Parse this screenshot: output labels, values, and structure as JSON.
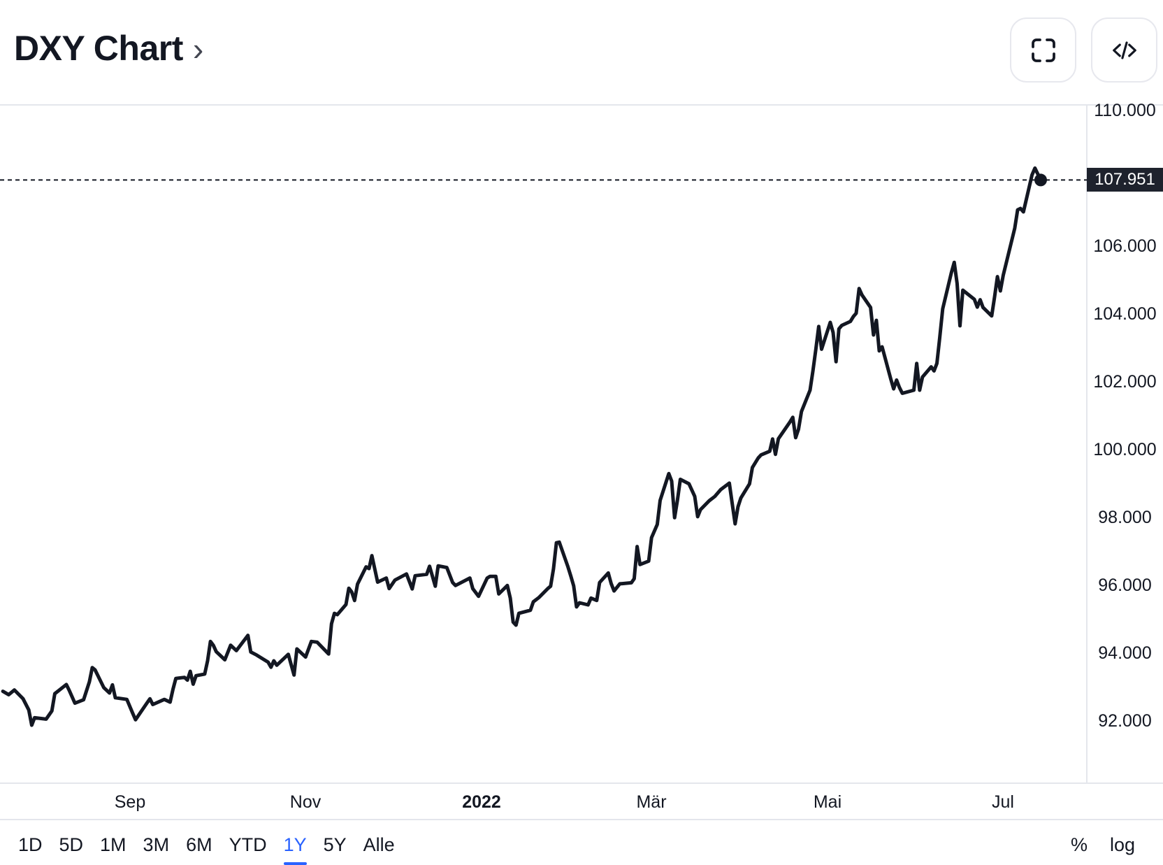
{
  "header": {
    "title": "DXY Chart",
    "chevron": "›"
  },
  "colors": {
    "line": "#131722",
    "accent_blue": "#2962ff",
    "badge_bg": "#1e222d",
    "border_gray": "#e4e6ec",
    "text_dark": "#131722"
  },
  "chart_data": {
    "type": "line",
    "title": "DXY Chart",
    "symbol": "DXY",
    "grid": "off",
    "legend": "none",
    "last_price": 107.951,
    "last_price_label": "107.951",
    "time_domain": [
      "2021-07-18",
      "2022-07-30"
    ],
    "ylim": [
      90.16,
      110.165
    ],
    "y_ticks": [
      {
        "label": "110.000",
        "value": 110
      },
      {
        "label": "106.000",
        "value": 106
      },
      {
        "label": "104.000",
        "value": 104
      },
      {
        "label": "102.000",
        "value": 102
      },
      {
        "label": "100.000",
        "value": 100
      },
      {
        "label": "98.000",
        "value": 98
      },
      {
        "label": "96.000",
        "value": 96
      },
      {
        "label": "94.000",
        "value": 94
      },
      {
        "label": "92.000",
        "value": 92
      }
    ],
    "x_ticks": [
      {
        "label": "Sep",
        "date": "2021-09-01",
        "bold": false
      },
      {
        "label": "Nov",
        "date": "2021-11-01",
        "bold": false
      },
      {
        "label": "2022",
        "date": "2022-01-01",
        "bold": true
      },
      {
        "label": "Mär",
        "date": "2022-03-01",
        "bold": false
      },
      {
        "label": "Mai",
        "date": "2022-05-01",
        "bold": false
      },
      {
        "label": "Jul",
        "date": "2022-07-01",
        "bold": false
      }
    ],
    "series": [
      [
        "2021-07-19",
        92.87
      ],
      [
        "2021-07-21",
        92.77
      ],
      [
        "2021-07-23",
        92.91
      ],
      [
        "2021-07-26",
        92.65
      ],
      [
        "2021-07-28",
        92.32
      ],
      [
        "2021-07-29",
        91.87
      ],
      [
        "2021-07-30",
        92.09
      ],
      [
        "2021-08-03",
        92.05
      ],
      [
        "2021-08-05",
        92.29
      ],
      [
        "2021-08-06",
        92.8
      ],
      [
        "2021-08-10",
        93.07
      ],
      [
        "2021-08-11",
        92.9
      ],
      [
        "2021-08-13",
        92.52
      ],
      [
        "2021-08-16",
        92.62
      ],
      [
        "2021-08-18",
        93.15
      ],
      [
        "2021-08-19",
        93.57
      ],
      [
        "2021-08-20",
        93.5
      ],
      [
        "2021-08-23",
        92.98
      ],
      [
        "2021-08-25",
        92.82
      ],
      [
        "2021-08-26",
        93.06
      ],
      [
        "2021-08-27",
        92.68
      ],
      [
        "2021-08-31",
        92.63
      ],
      [
        "2021-09-02",
        92.23
      ],
      [
        "2021-09-03",
        92.03
      ],
      [
        "2021-09-07",
        92.53
      ],
      [
        "2021-09-08",
        92.65
      ],
      [
        "2021-09-09",
        92.48
      ],
      [
        "2021-09-13",
        92.63
      ],
      [
        "2021-09-15",
        92.55
      ],
      [
        "2021-09-16",
        92.93
      ],
      [
        "2021-09-17",
        93.25
      ],
      [
        "2021-09-20",
        93.28
      ],
      [
        "2021-09-21",
        93.2
      ],
      [
        "2021-09-22",
        93.46
      ],
      [
        "2021-09-23",
        93.08
      ],
      [
        "2021-09-24",
        93.33
      ],
      [
        "2021-09-27",
        93.38
      ],
      [
        "2021-09-28",
        93.77
      ],
      [
        "2021-09-29",
        94.34
      ],
      [
        "2021-09-30",
        94.23
      ],
      [
        "2021-10-01",
        94.04
      ],
      [
        "2021-10-04",
        93.8
      ],
      [
        "2021-10-06",
        94.23
      ],
      [
        "2021-10-08",
        94.07
      ],
      [
        "2021-10-12",
        94.52
      ],
      [
        "2021-10-13",
        94.03
      ],
      [
        "2021-10-15",
        93.94
      ],
      [
        "2021-10-19",
        93.73
      ],
      [
        "2021-10-20",
        93.58
      ],
      [
        "2021-10-21",
        93.77
      ],
      [
        "2021-10-22",
        93.64
      ],
      [
        "2021-10-26",
        93.96
      ],
      [
        "2021-10-28",
        93.35
      ],
      [
        "2021-10-29",
        94.12
      ],
      [
        "2021-11-01",
        93.88
      ],
      [
        "2021-11-03",
        94.34
      ],
      [
        "2021-11-05",
        94.32
      ],
      [
        "2021-11-09",
        93.97
      ],
      [
        "2021-11-10",
        94.86
      ],
      [
        "2021-11-11",
        95.17
      ],
      [
        "2021-11-12",
        95.13
      ],
      [
        "2021-11-15",
        95.43
      ],
      [
        "2021-11-16",
        95.91
      ],
      [
        "2021-11-17",
        95.8
      ],
      [
        "2021-11-18",
        95.55
      ],
      [
        "2021-11-19",
        96.03
      ],
      [
        "2021-11-22",
        96.54
      ],
      [
        "2021-11-23",
        96.49
      ],
      [
        "2021-11-24",
        96.87
      ],
      [
        "2021-11-26",
        96.09
      ],
      [
        "2021-11-29",
        96.21
      ],
      [
        "2021-11-30",
        95.9
      ],
      [
        "2021-12-02",
        96.15
      ],
      [
        "2021-12-06",
        96.33
      ],
      [
        "2021-12-08",
        95.89
      ],
      [
        "2021-12-09",
        96.28
      ],
      [
        "2021-12-13",
        96.32
      ],
      [
        "2021-12-14",
        96.56
      ],
      [
        "2021-12-16",
        95.97
      ],
      [
        "2021-12-17",
        96.57
      ],
      [
        "2021-12-20",
        96.52
      ],
      [
        "2021-12-22",
        96.08
      ],
      [
        "2021-12-23",
        95.99
      ],
      [
        "2021-12-28",
        96.21
      ],
      [
        "2021-12-29",
        95.9
      ],
      [
        "2021-12-31",
        95.67
      ],
      [
        "2022-01-03",
        96.21
      ],
      [
        "2022-01-04",
        96.26
      ],
      [
        "2022-01-06",
        96.26
      ],
      [
        "2022-01-07",
        95.74
      ],
      [
        "2022-01-10",
        95.99
      ],
      [
        "2022-01-11",
        95.62
      ],
      [
        "2022-01-12",
        94.91
      ],
      [
        "2022-01-13",
        94.82
      ],
      [
        "2022-01-14",
        95.17
      ],
      [
        "2022-01-18",
        95.26
      ],
      [
        "2022-01-19",
        95.51
      ],
      [
        "2022-01-21",
        95.64
      ],
      [
        "2022-01-24",
        95.9
      ],
      [
        "2022-01-25",
        95.97
      ],
      [
        "2022-01-26",
        96.48
      ],
      [
        "2022-01-27",
        97.25
      ],
      [
        "2022-01-28",
        97.27
      ],
      [
        "2022-01-31",
        96.54
      ],
      [
        "2022-02-01",
        96.27
      ],
      [
        "2022-02-02",
        95.98
      ],
      [
        "2022-02-03",
        95.36
      ],
      [
        "2022-02-04",
        95.48
      ],
      [
        "2022-02-07",
        95.42
      ],
      [
        "2022-02-08",
        95.62
      ],
      [
        "2022-02-10",
        95.55
      ],
      [
        "2022-02-11",
        96.08
      ],
      [
        "2022-02-14",
        96.36
      ],
      [
        "2022-02-15",
        96.05
      ],
      [
        "2022-02-16",
        95.83
      ],
      [
        "2022-02-18",
        96.04
      ],
      [
        "2022-02-22",
        96.07
      ],
      [
        "2022-02-23",
        96.19
      ],
      [
        "2022-02-24",
        97.14
      ],
      [
        "2022-02-25",
        96.61
      ],
      [
        "2022-02-28",
        96.71
      ],
      [
        "2022-03-01",
        97.4
      ],
      [
        "2022-03-03",
        97.79
      ],
      [
        "2022-03-04",
        98.5
      ],
      [
        "2022-03-07",
        99.29
      ],
      [
        "2022-03-08",
        99.07
      ],
      [
        "2022-03-09",
        97.99
      ],
      [
        "2022-03-10",
        98.51
      ],
      [
        "2022-03-11",
        99.12
      ],
      [
        "2022-03-14",
        98.99
      ],
      [
        "2022-03-16",
        98.62
      ],
      [
        "2022-03-17",
        98.02
      ],
      [
        "2022-03-18",
        98.23
      ],
      [
        "2022-03-21",
        98.49
      ],
      [
        "2022-03-23",
        98.62
      ],
      [
        "2022-03-25",
        98.82
      ],
      [
        "2022-03-28",
        99.01
      ],
      [
        "2022-03-29",
        98.4
      ],
      [
        "2022-03-30",
        97.81
      ],
      [
        "2022-03-31",
        98.31
      ],
      [
        "2022-04-01",
        98.57
      ],
      [
        "2022-04-04",
        98.99
      ],
      [
        "2022-04-05",
        99.47
      ],
      [
        "2022-04-07",
        99.75
      ],
      [
        "2022-04-08",
        99.84
      ],
      [
        "2022-04-11",
        99.95
      ],
      [
        "2022-04-12",
        100.31
      ],
      [
        "2022-04-13",
        99.86
      ],
      [
        "2022-04-14",
        100.32
      ],
      [
        "2022-04-18",
        100.81
      ],
      [
        "2022-04-19",
        100.95
      ],
      [
        "2022-04-20",
        100.35
      ],
      [
        "2022-04-21",
        100.6
      ],
      [
        "2022-04-22",
        101.12
      ],
      [
        "2022-04-25",
        101.75
      ],
      [
        "2022-04-26",
        102.33
      ],
      [
        "2022-04-27",
        102.96
      ],
      [
        "2022-04-28",
        103.63
      ],
      [
        "2022-04-29",
        102.96
      ],
      [
        "2022-05-02",
        103.75
      ],
      [
        "2022-05-03",
        103.45
      ],
      [
        "2022-05-04",
        102.59
      ],
      [
        "2022-05-05",
        103.56
      ],
      [
        "2022-05-06",
        103.66
      ],
      [
        "2022-05-09",
        103.78
      ],
      [
        "2022-05-10",
        103.92
      ],
      [
        "2022-05-11",
        104.02
      ],
      [
        "2022-05-12",
        104.75
      ],
      [
        "2022-05-13",
        104.56
      ],
      [
        "2022-05-16",
        104.19
      ],
      [
        "2022-05-17",
        103.38
      ],
      [
        "2022-05-18",
        103.81
      ],
      [
        "2022-05-19",
        102.91
      ],
      [
        "2022-05-20",
        103.03
      ],
      [
        "2022-05-23",
        102.08
      ],
      [
        "2022-05-24",
        101.79
      ],
      [
        "2022-05-25",
        102.05
      ],
      [
        "2022-05-26",
        101.83
      ],
      [
        "2022-05-27",
        101.66
      ],
      [
        "2022-05-31",
        101.75
      ],
      [
        "2022-06-01",
        102.54
      ],
      [
        "2022-06-02",
        101.75
      ],
      [
        "2022-06-03",
        102.14
      ],
      [
        "2022-06-06",
        102.44
      ],
      [
        "2022-06-07",
        102.32
      ],
      [
        "2022-06-08",
        102.54
      ],
      [
        "2022-06-09",
        103.31
      ],
      [
        "2022-06-10",
        104.15
      ],
      [
        "2022-06-13",
        105.21
      ],
      [
        "2022-06-14",
        105.52
      ],
      [
        "2022-06-15",
        104.9
      ],
      [
        "2022-06-16",
        103.65
      ],
      [
        "2022-06-17",
        104.7
      ],
      [
        "2022-06-21",
        104.43
      ],
      [
        "2022-06-22",
        104.2
      ],
      [
        "2022-06-23",
        104.42
      ],
      [
        "2022-06-24",
        104.19
      ],
      [
        "2022-06-27",
        103.94
      ],
      [
        "2022-06-28",
        104.5
      ],
      [
        "2022-06-29",
        105.1
      ],
      [
        "2022-06-30",
        104.68
      ],
      [
        "2022-07-01",
        105.14
      ],
      [
        "2022-07-05",
        106.53
      ],
      [
        "2022-07-06",
        107.07
      ],
      [
        "2022-07-07",
        107.11
      ],
      [
        "2022-07-08",
        107.01
      ],
      [
        "2022-07-11",
        108.1
      ],
      [
        "2022-07-12",
        108.3
      ],
      [
        "2022-07-14",
        107.951
      ]
    ]
  },
  "toolbar": {
    "ranges": [
      {
        "label": "1D",
        "active": false
      },
      {
        "label": "5D",
        "active": false
      },
      {
        "label": "1M",
        "active": false
      },
      {
        "label": "3M",
        "active": false
      },
      {
        "label": "6M",
        "active": false
      },
      {
        "label": "YTD",
        "active": false
      },
      {
        "label": "1Y",
        "active": true
      },
      {
        "label": "5Y",
        "active": false
      },
      {
        "label": "Alle",
        "active": false
      }
    ],
    "scale_buttons": [
      "%",
      "log"
    ]
  }
}
